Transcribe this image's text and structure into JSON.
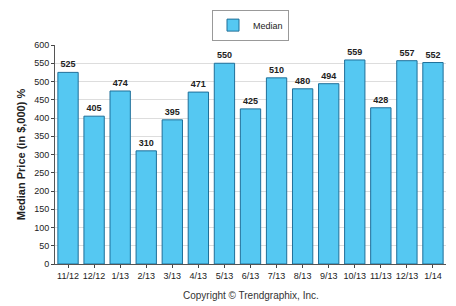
{
  "chart_data": {
    "type": "bar",
    "y_label": "Median Price (in $,000) %",
    "categories": [
      "11/12",
      "12/12",
      "1/13",
      "2/13",
      "3/13",
      "4/13",
      "5/13",
      "6/13",
      "7/13",
      "8/13",
      "9/13",
      "10/13",
      "11/13",
      "12/13",
      "1/14"
    ],
    "series": [
      {
        "name": "Median",
        "color": "#55c8f2",
        "values": [
          525,
          405,
          474,
          310,
          395,
          471,
          550,
          425,
          510,
          480,
          494,
          559,
          428,
          557,
          552
        ]
      }
    ],
    "ylim": [
      0,
      600
    ],
    "yticks": [
      0,
      50,
      100,
      150,
      200,
      250,
      300,
      350,
      400,
      450,
      500,
      550,
      600
    ],
    "grid": true,
    "legend": "top",
    "data_labels": true,
    "annotations": [
      "Copyright © Trendgraphix, Inc."
    ]
  }
}
